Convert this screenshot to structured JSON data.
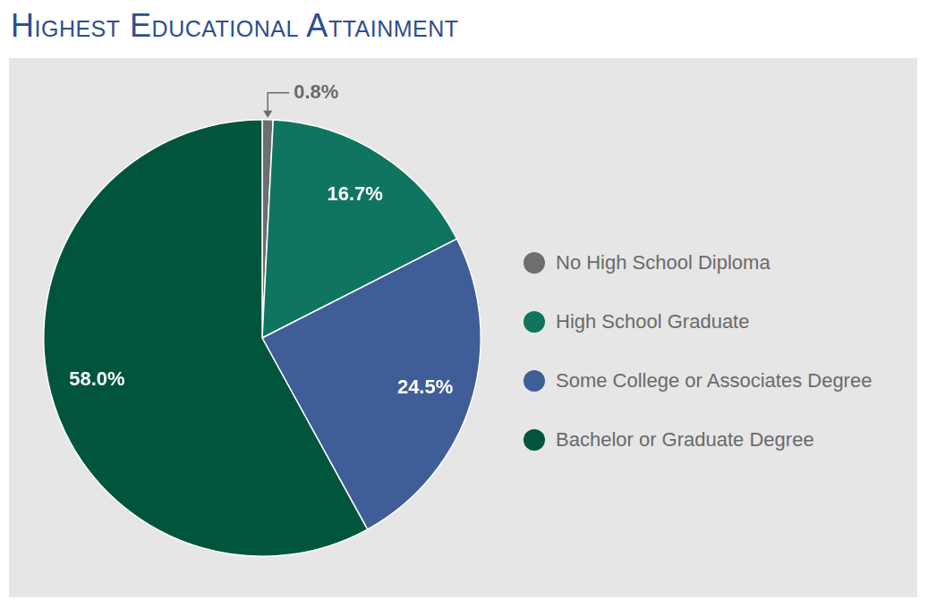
{
  "chart_data": {
    "type": "pie",
    "title": "Highest Educational Attainment",
    "categories": [
      "No High School Diploma",
      "High School Graduate",
      "Some College or Associates Degree",
      "Bachelor or Graduate Degree"
    ],
    "values": [
      0.8,
      16.7,
      24.5,
      58.0
    ],
    "value_labels": [
      "0.8%",
      "16.7%",
      "24.5%",
      "58.0%"
    ],
    "colors": [
      "#6d6e70",
      "#107560",
      "#3f5e97",
      "#02553d"
    ],
    "legend": "right",
    "data_labels": true
  }
}
